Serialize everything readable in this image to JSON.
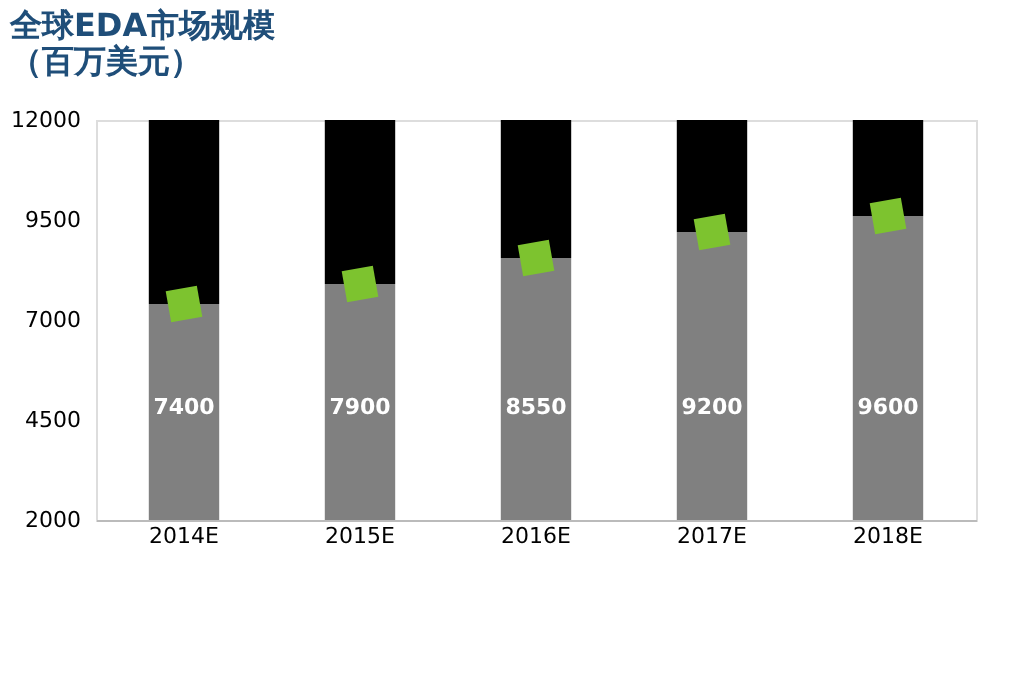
{
  "chart_data": {
    "type": "bar",
    "title": [
      "全球EDA市场规模",
      "（百万美元）"
    ],
    "categories": [
      "2014E",
      "2015E",
      "2016E",
      "2017E",
      "2018E"
    ],
    "stacked": true,
    "series": [
      {
        "color": "#808080",
        "values": [
          7400,
          7900,
          8550,
          9200,
          9600
        ],
        "data_labels": true
      },
      {
        "color": "#000000",
        "values": [
          4600,
          4100,
          3450,
          2800,
          2400
        ]
      },
      {
        "type": "scatter",
        "marker": "diamond",
        "color": "#7dc32f",
        "values": [
          7400,
          7900,
          8550,
          9200,
          9600
        ]
      }
    ],
    "ylim": [
      2000,
      12000
    ],
    "yticks": [
      2000,
      4500,
      7000,
      9500,
      12000
    ],
    "grid": false
  }
}
